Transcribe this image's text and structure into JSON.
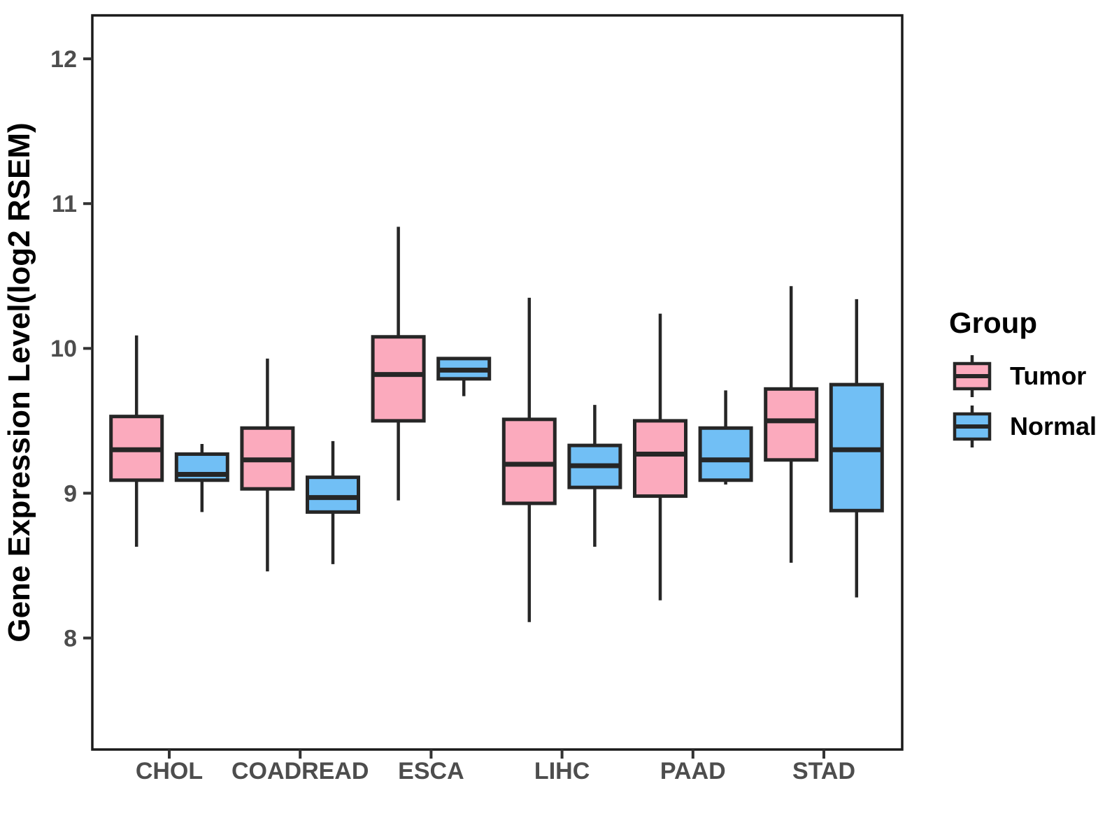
{
  "figure": {
    "background": "#FFFFFF"
  },
  "chart_data": {
    "type": "boxplot",
    "title": "",
    "xlabel": "",
    "ylabel": "Gene Expression Level(log2 RSEM)",
    "y_ticks": [
      "8",
      "9",
      "10",
      "11",
      "12"
    ],
    "ylim": [
      7.23,
      12.3
    ],
    "grid": false,
    "categories": [
      "CHOL",
      "COADREAD",
      "ESCA",
      "LIHC",
      "PAAD",
      "STAD"
    ],
    "series": [
      {
        "name": "Tumor",
        "color": "#FBAABD",
        "boxes": [
          {
            "category": "CHOL",
            "min": 8.63,
            "q1": 9.09,
            "median": 9.3,
            "q3": 9.53,
            "max": 10.09
          },
          {
            "category": "COADREAD",
            "min": 8.46,
            "q1": 9.03,
            "median": 9.23,
            "q3": 9.45,
            "max": 9.93
          },
          {
            "category": "ESCA",
            "min": 8.95,
            "q1": 9.5,
            "median": 9.82,
            "q3": 10.08,
            "max": 10.84
          },
          {
            "category": "LIHC",
            "min": 8.11,
            "q1": 8.93,
            "median": 9.2,
            "q3": 9.51,
            "max": 10.35
          },
          {
            "category": "PAAD",
            "min": 8.26,
            "q1": 8.98,
            "median": 9.27,
            "q3": 9.5,
            "max": 10.24
          },
          {
            "category": "STAD",
            "min": 8.52,
            "q1": 9.23,
            "median": 9.5,
            "q3": 9.72,
            "max": 10.43
          }
        ]
      },
      {
        "name": "Normal",
        "color": "#71BFF5",
        "boxes": [
          {
            "category": "CHOL",
            "min": 8.87,
            "q1": 9.09,
            "median": 9.13,
            "q3": 9.27,
            "max": 9.34
          },
          {
            "category": "COADREAD",
            "min": 8.51,
            "q1": 8.87,
            "median": 8.97,
            "q3": 9.11,
            "max": 9.36
          },
          {
            "category": "ESCA",
            "min": 9.67,
            "q1": 9.79,
            "median": 9.85,
            "q3": 9.93,
            "max": 9.93
          },
          {
            "category": "LIHC",
            "min": 8.63,
            "q1": 9.04,
            "median": 9.19,
            "q3": 9.33,
            "max": 9.61
          },
          {
            "category": "PAAD",
            "min": 9.06,
            "q1": 9.09,
            "median": 9.23,
            "q3": 9.45,
            "max": 9.71
          },
          {
            "category": "STAD",
            "min": 8.28,
            "q1": 8.88,
            "median": 9.3,
            "q3": 9.75,
            "max": 10.34
          }
        ]
      }
    ],
    "legend": {
      "title": "Group",
      "position": "right",
      "entries": [
        "Tumor",
        "Normal"
      ]
    }
  },
  "styles": {
    "box_border_color": "#262626",
    "median_color": "#262626",
    "whisker_color": "#262626",
    "panel_border_color": "#1A1A1A",
    "tick_color": "#333333",
    "tick_label_color": "#4D4D4D",
    "axis_title_color": "#000000"
  }
}
